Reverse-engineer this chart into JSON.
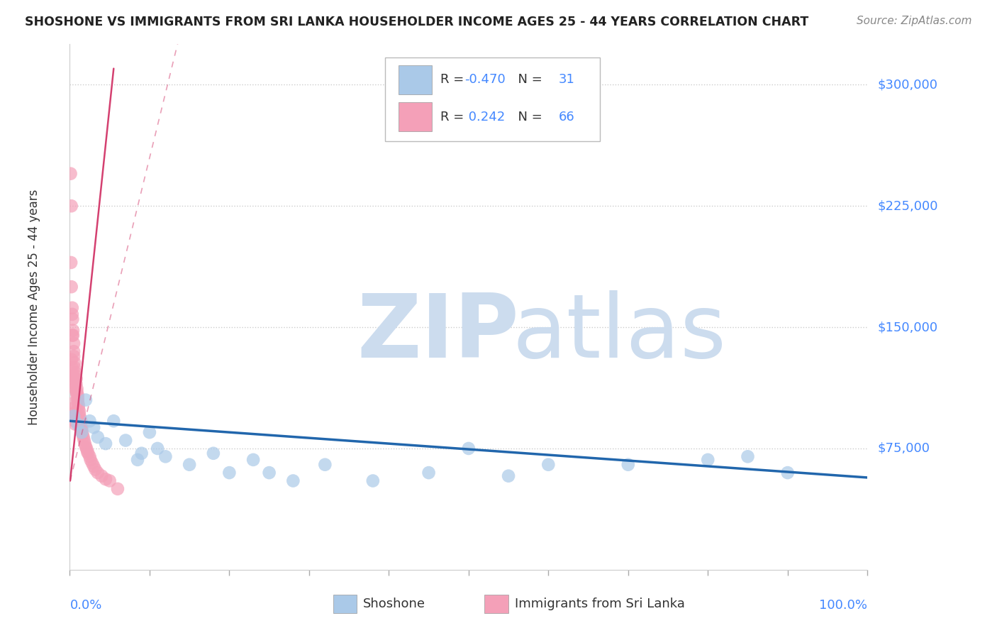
{
  "title": "SHOSHONE VS IMMIGRANTS FROM SRI LANKA HOUSEHOLDER INCOME AGES 25 - 44 YEARS CORRELATION CHART",
  "source": "Source: ZipAtlas.com",
  "ylabel": "Householder Income Ages 25 - 44 years",
  "ytick_values": [
    75000,
    150000,
    225000,
    300000
  ],
  "ytick_labels": [
    "$75,000",
    "$150,000",
    "$225,000",
    "$300,000"
  ],
  "ymin": 0,
  "ymax": 325000,
  "xmin": 0,
  "xmax": 100,
  "legend_r_blue": "-0.470",
  "legend_n_blue": "31",
  "legend_r_pink": "0.242",
  "legend_n_pink": "66",
  "blue_scatter_color": "#aac9e8",
  "pink_scatter_color": "#f4a0b8",
  "blue_line_color": "#2166ac",
  "pink_line_color": "#d44070",
  "watermark_color": "#ccdcee",
  "grid_color": "#cccccc",
  "axis_label_color": "#4488ff",
  "title_color": "#222222",
  "shoshone_x": [
    0.5,
    1.0,
    1.5,
    2.0,
    2.5,
    3.0,
    3.5,
    4.5,
    5.5,
    7.0,
    8.5,
    9.0,
    10.0,
    11.0,
    12.0,
    15.0,
    18.0,
    20.0,
    23.0,
    25.0,
    28.0,
    32.0,
    38.0,
    45.0,
    50.0,
    55.0,
    60.0,
    70.0,
    80.0,
    85.0,
    90.0
  ],
  "shoshone_y": [
    95000,
    90000,
    85000,
    105000,
    92000,
    88000,
    82000,
    78000,
    92000,
    80000,
    68000,
    72000,
    85000,
    75000,
    70000,
    65000,
    72000,
    60000,
    68000,
    60000,
    55000,
    65000,
    55000,
    60000,
    75000,
    58000,
    65000,
    65000,
    68000,
    70000,
    60000
  ],
  "srilanka_x": [
    0.1,
    0.15,
    0.2,
    0.2,
    0.3,
    0.3,
    0.35,
    0.4,
    0.4,
    0.5,
    0.5,
    0.5,
    0.6,
    0.6,
    0.7,
    0.7,
    0.8,
    0.8,
    0.9,
    0.9,
    1.0,
    1.0,
    1.0,
    1.1,
    1.1,
    1.2,
    1.2,
    1.3,
    1.4,
    1.4,
    1.5,
    1.5,
    1.6,
    1.7,
    1.8,
    1.9,
    2.0,
    2.1,
    2.2,
    2.3,
    2.5,
    2.6,
    2.8,
    3.0,
    3.2,
    3.5,
    4.0,
    4.5,
    5.0,
    6.0,
    0.2,
    0.3,
    0.4,
    0.5,
    0.6,
    0.7,
    0.8,
    0.9,
    1.0,
    0.5,
    0.6,
    0.7,
    0.4,
    0.5,
    0.6,
    0.3
  ],
  "srilanka_y": [
    245000,
    190000,
    175000,
    225000,
    162000,
    158000,
    155000,
    148000,
    145000,
    140000,
    135000,
    132000,
    128000,
    125000,
    122000,
    120000,
    118000,
    115000,
    112000,
    110000,
    108000,
    106000,
    104000,
    102000,
    100000,
    98000,
    96000,
    94000,
    92000,
    90000,
    88000,
    86000,
    84000,
    82000,
    80000,
    78000,
    76000,
    75000,
    73000,
    72000,
    70000,
    68000,
    66000,
    64000,
    62000,
    60000,
    58000,
    56000,
    55000,
    50000,
    130000,
    125000,
    120000,
    118000,
    115000,
    112000,
    110000,
    108000,
    105000,
    95000,
    92000,
    90000,
    103000,
    100000,
    97000,
    145000
  ],
  "blue_line_x": [
    0,
    100
  ],
  "blue_line_y": [
    92000,
    57000
  ],
  "pink_line_x": [
    0.05,
    5.5
  ],
  "pink_line_y": [
    55000,
    310000
  ]
}
